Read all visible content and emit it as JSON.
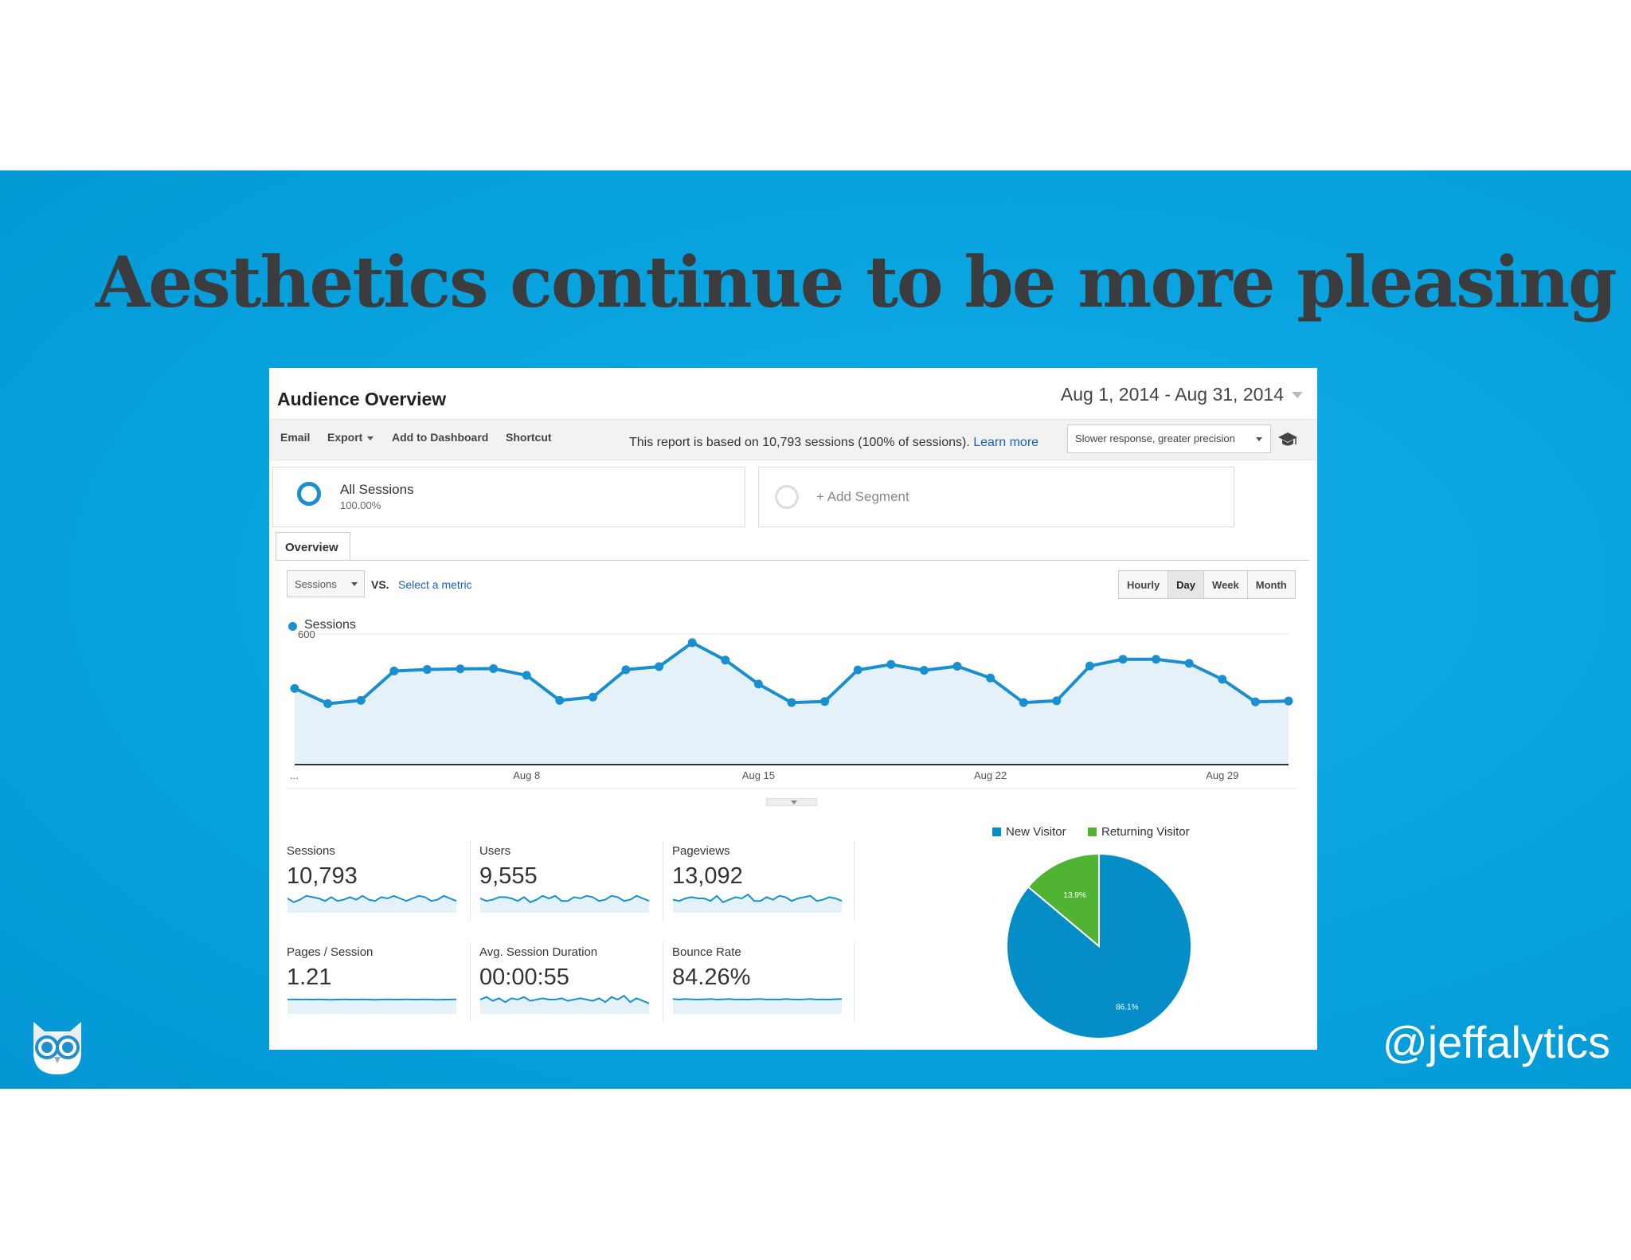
{
  "slide": {
    "title": "Aesthetics continue to be more pleasing",
    "handle": "@jeffalytics",
    "background": "#07a2de",
    "title_color": "#3c3c3f",
    "logo_icon": "owl-logo-icon"
  },
  "report": {
    "title": "Audience Overview",
    "date_range": "Aug 1, 2014 - Aug 31, 2014",
    "toolbar": {
      "email": "Email",
      "export": "Export",
      "add_to_dashboard": "Add to Dashboard",
      "shortcut": "Shortcut"
    },
    "note": "This report is based on 10,793 sessions (100% of sessions).",
    "learn_more": "Learn more",
    "precision": "Slower response, greater precision",
    "segments": {
      "all_sessions": "All Sessions",
      "all_sessions_pct": "100.00%",
      "add_segment": "+ Add Segment"
    },
    "tab": "Overview",
    "metric": "Sessions",
    "vs": "VS.",
    "select_metric": "Select a metric",
    "periods": [
      "Hourly",
      "Day",
      "Week",
      "Month"
    ],
    "active_period": "Day",
    "accent": "#1a8fd0"
  },
  "chart_data": [
    {
      "type": "line",
      "series": [
        {
          "name": "Sessions",
          "values": [
            350,
            280,
            295,
            430,
            437,
            440,
            441,
            410,
            295,
            310,
            436,
            450,
            560,
            480,
            370,
            285,
            290,
            435,
            460,
            433,
            452,
            398,
            285,
            293,
            453,
            484,
            484,
            465,
            392,
            288,
            292
          ]
        }
      ],
      "x": [
        1,
        2,
        3,
        4,
        5,
        6,
        7,
        8,
        9,
        10,
        11,
        12,
        13,
        14,
        15,
        16,
        17,
        18,
        19,
        20,
        21,
        22,
        23,
        24,
        25,
        26,
        27,
        28,
        29,
        30,
        31
      ],
      "x_tick_labels": [
        "...",
        "Aug 8",
        "Aug 15",
        "Aug 22",
        "Aug 29"
      ],
      "x_tick_positions": [
        1,
        8,
        15,
        22,
        29
      ],
      "y_ticks": [
        600,
        300
      ],
      "ylim": [
        0,
        600
      ],
      "grid": true
    },
    {
      "type": "pie",
      "categories": [
        "New Visitor",
        "Returning Visitor"
      ],
      "values": [
        86.1,
        13.9
      ],
      "labels": [
        "86.1%",
        "13.9%"
      ],
      "colors": [
        "#058dc7",
        "#50b432"
      ]
    }
  ],
  "tiles": [
    {
      "label": "Sessions",
      "value": "10,793",
      "spark": [
        0.5,
        0.2,
        0.4,
        0.7,
        0.6,
        0.5,
        0.3,
        0.6,
        0.3,
        0.4,
        0.6,
        0.4,
        0.7,
        0.4,
        0.3,
        0.6,
        0.5,
        0.7,
        0.5,
        0.3,
        0.5,
        0.7,
        0.6,
        0.3,
        0.4,
        0.7,
        0.5,
        0.3
      ]
    },
    {
      "label": "Users",
      "value": "9,555",
      "spark": [
        0.5,
        0.3,
        0.4,
        0.6,
        0.6,
        0.5,
        0.3,
        0.6,
        0.2,
        0.4,
        0.7,
        0.5,
        0.7,
        0.3,
        0.3,
        0.6,
        0.5,
        0.7,
        0.6,
        0.3,
        0.4,
        0.7,
        0.6,
        0.3,
        0.4,
        0.7,
        0.5,
        0.3
      ]
    },
    {
      "label": "Pageviews",
      "value": "13,092",
      "spark": [
        0.4,
        0.3,
        0.5,
        0.6,
        0.5,
        0.5,
        0.3,
        0.7,
        0.2,
        0.4,
        0.6,
        0.5,
        0.8,
        0.3,
        0.3,
        0.6,
        0.4,
        0.7,
        0.6,
        0.3,
        0.5,
        0.6,
        0.7,
        0.3,
        0.4,
        0.6,
        0.5,
        0.3
      ]
    },
    {
      "label": "Pages / Session",
      "value": "1.21",
      "spark": [
        0.5,
        0.52,
        0.5,
        0.51,
        0.5,
        0.52,
        0.5,
        0.49,
        0.5,
        0.51,
        0.5,
        0.5,
        0.52,
        0.5,
        0.49,
        0.5,
        0.51,
        0.5,
        0.5,
        0.52,
        0.5,
        0.5,
        0.51,
        0.5,
        0.49,
        0.5,
        0.5,
        0.51
      ]
    },
    {
      "label": "Avg. Session Duration",
      "value": "00:00:55",
      "spark": [
        0.5,
        0.7,
        0.4,
        0.6,
        0.3,
        0.6,
        0.5,
        0.7,
        0.4,
        0.5,
        0.6,
        0.5,
        0.5,
        0.6,
        0.4,
        0.5,
        0.6,
        0.5,
        0.4,
        0.6,
        0.3,
        0.7,
        0.5,
        0.8,
        0.3,
        0.6,
        0.4,
        0.2
      ]
    },
    {
      "label": "Bounce Rate",
      "value": "84.26%",
      "spark": [
        0.55,
        0.5,
        0.55,
        0.52,
        0.5,
        0.52,
        0.55,
        0.5,
        0.52,
        0.55,
        0.5,
        0.52,
        0.5,
        0.53,
        0.55,
        0.5,
        0.52,
        0.5,
        0.55,
        0.52,
        0.5,
        0.52,
        0.55,
        0.5,
        0.52,
        0.5,
        0.53,
        0.55
      ]
    }
  ]
}
